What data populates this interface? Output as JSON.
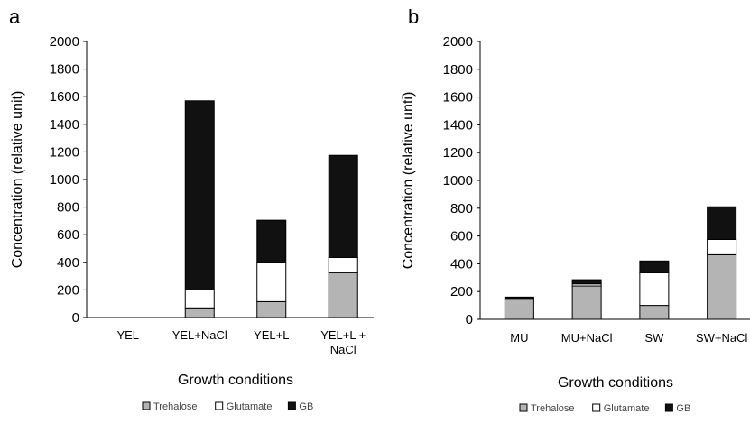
{
  "chart_data": [
    {
      "type": "bar",
      "stacked": true,
      "panel_label": "a",
      "categories": [
        "YEL",
        "YEL+NaCl",
        "YEL+L",
        "YEL+L + NaCl"
      ],
      "series": [
        {
          "name": "Trehalose",
          "values": [
            0,
            70,
            115,
            325
          ],
          "color": "#b4b4b4"
        },
        {
          "name": "Glutamate",
          "values": [
            0,
            130,
            285,
            110
          ],
          "color": "#ffffff"
        },
        {
          "name": "GB",
          "values": [
            0,
            1370,
            305,
            740
          ],
          "color": "#111111"
        }
      ],
      "xlabel": "Growth conditions",
      "ylabel": "Concentration (relative unit)",
      "ylim": [
        0,
        2000
      ],
      "yticks": [
        "0",
        "200",
        "400",
        "600",
        "800",
        "1000",
        "1200",
        "1400",
        "1600",
        "1800",
        "2000"
      ],
      "grid": false,
      "legend_position": "bottom"
    },
    {
      "type": "bar",
      "stacked": true,
      "panel_label": "b",
      "categories": [
        "MU",
        "MU+NaCl",
        "SW",
        "SW+NaCl"
      ],
      "series": [
        {
          "name": "Trehalose",
          "values": [
            140,
            240,
            100,
            465
          ],
          "color": "#b4b4b4"
        },
        {
          "name": "Glutamate",
          "values": [
            10,
            15,
            235,
            110
          ],
          "color": "#ffffff"
        },
        {
          "name": "GB",
          "values": [
            10,
            30,
            85,
            235
          ],
          "color": "#111111"
        }
      ],
      "xlabel": "Growth conditions",
      "ylabel": "Concentration (relative unti)",
      "ylim": [
        0,
        2000
      ],
      "yticks": [
        "0",
        "200",
        "400",
        "600",
        "800",
        "1000",
        "1200",
        "1400",
        "1600",
        "1800",
        "2000"
      ],
      "grid": false,
      "legend_position": "bottom"
    }
  ]
}
